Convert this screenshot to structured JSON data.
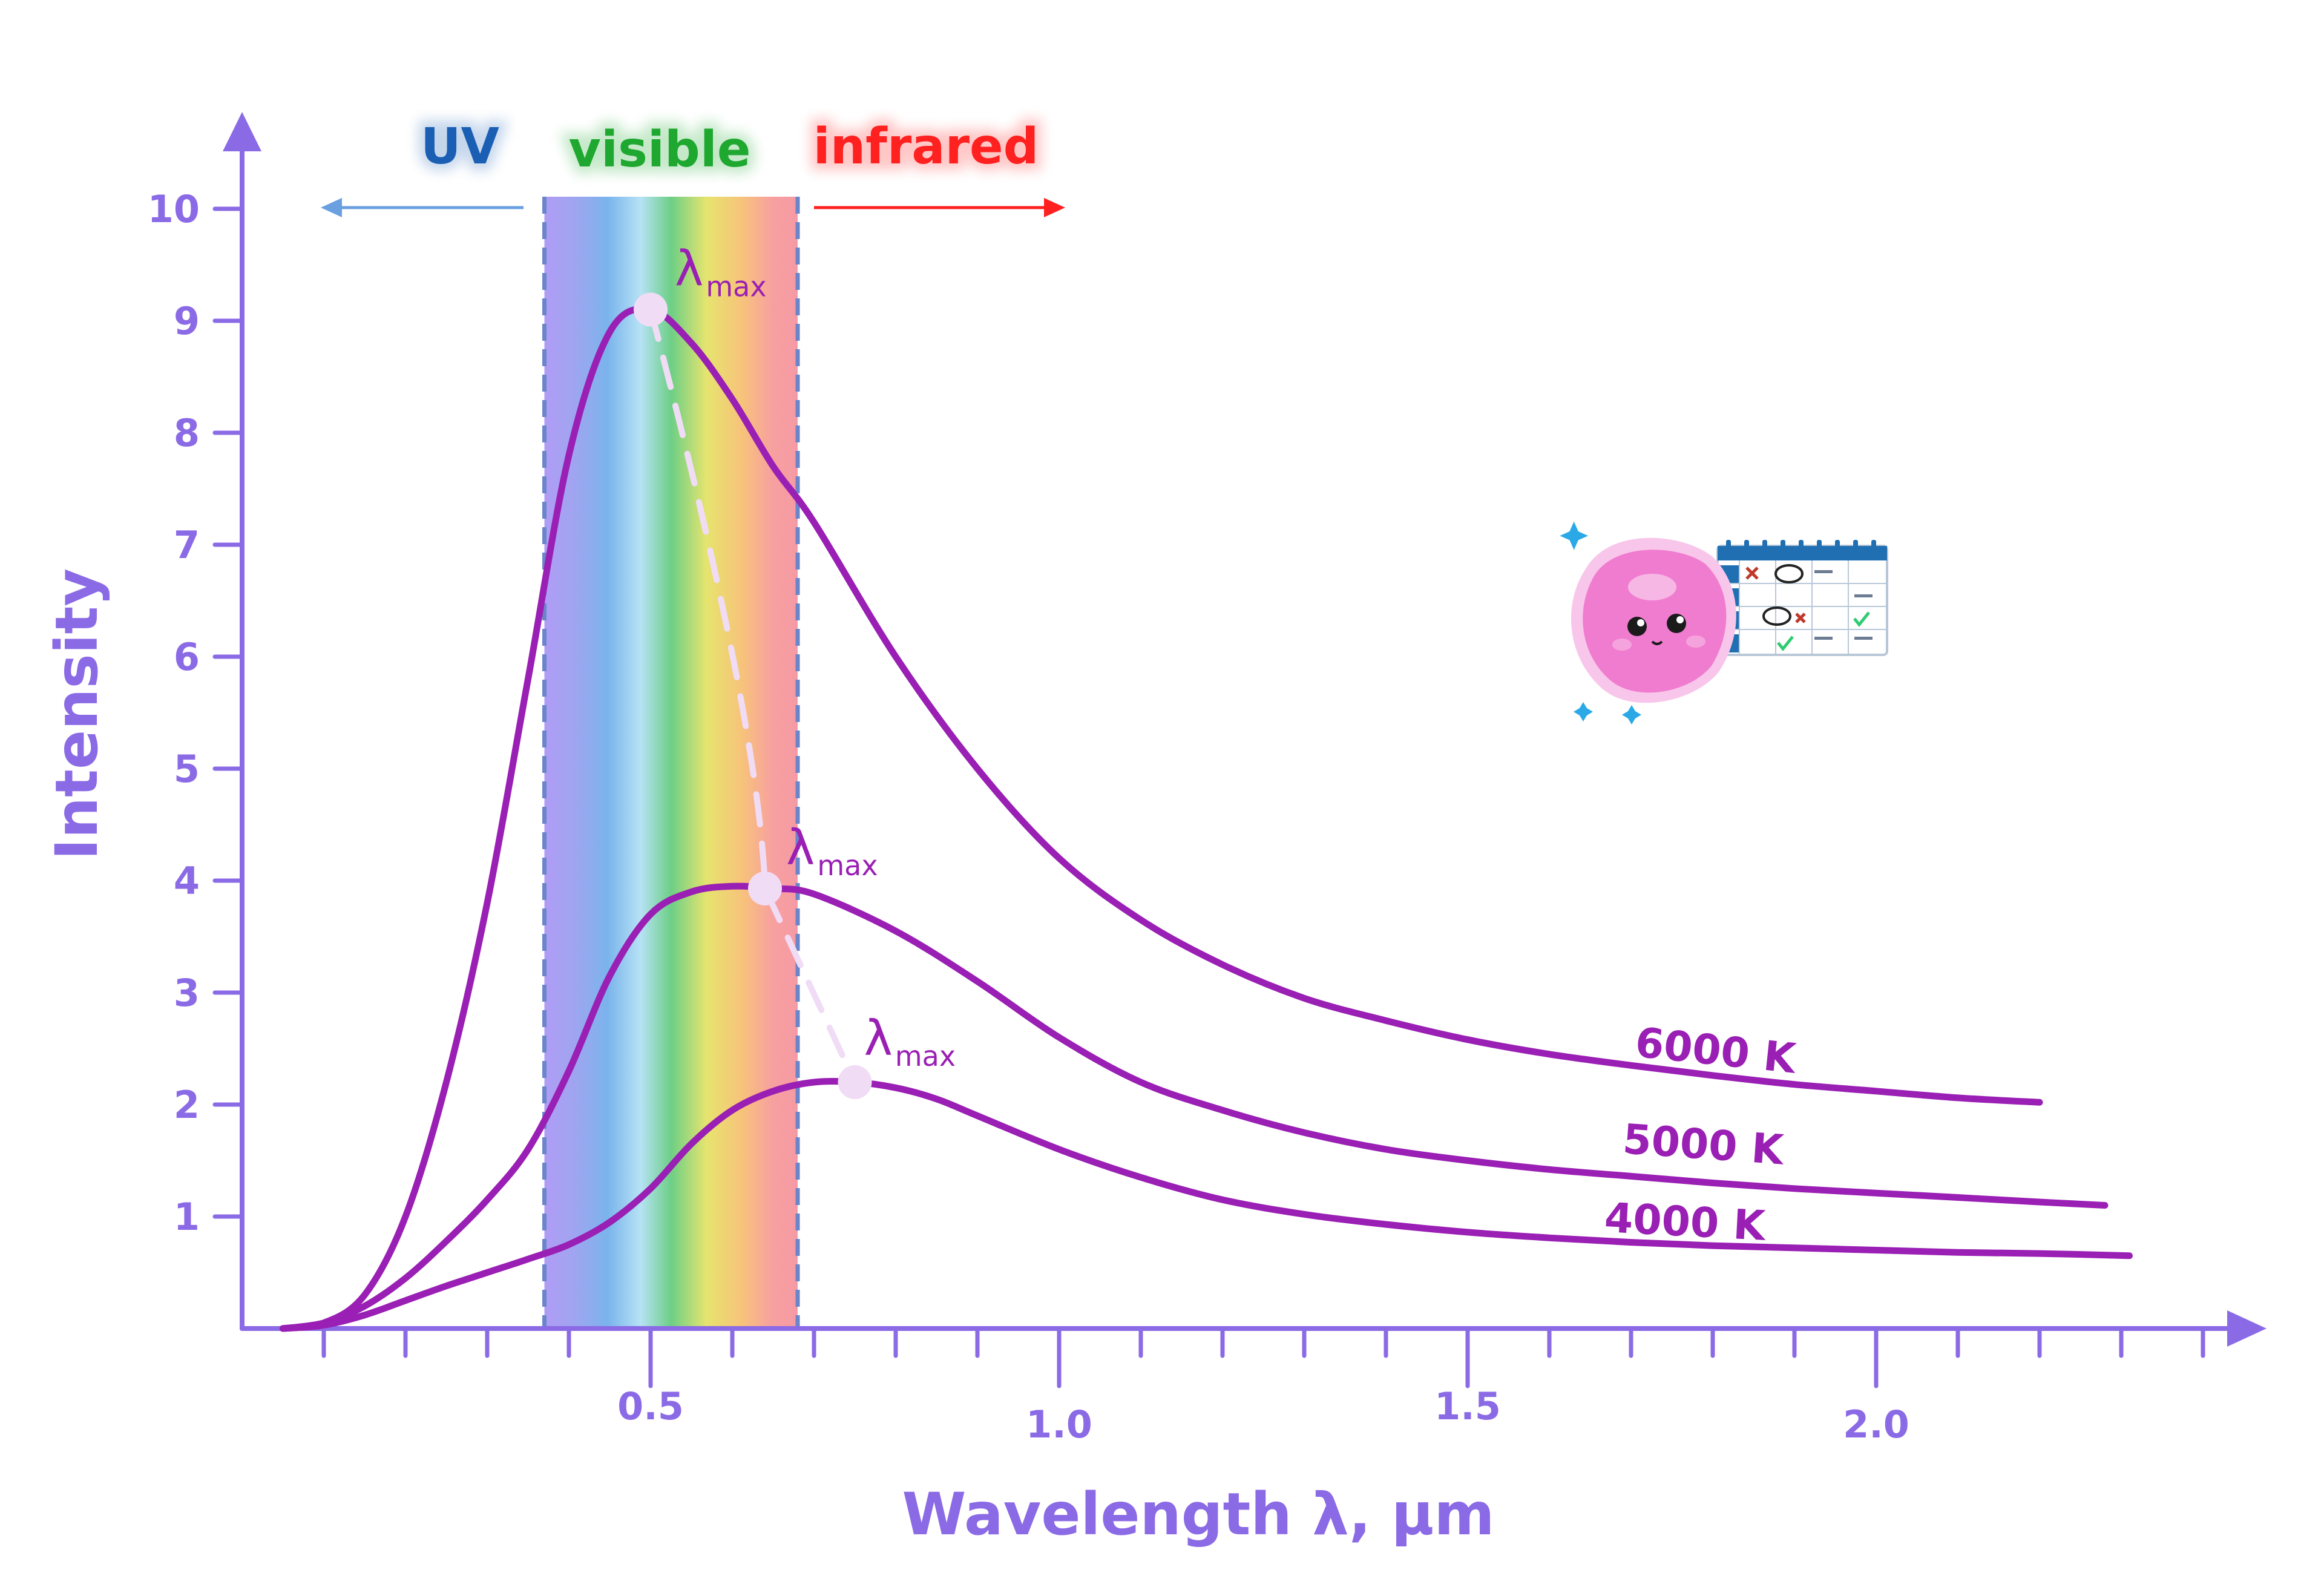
{
  "chart_data": {
    "type": "line",
    "xlabel": "Wavelength λ, µm",
    "ylabel": "Intensity",
    "xlim": [
      0.0,
      2.45
    ],
    "ylim": [
      0.0,
      10.5
    ],
    "x_ticks": [
      {
        "value": 0.5,
        "label": "0.5"
      },
      {
        "value": 1.0,
        "label": "1.0"
      },
      {
        "value": 1.5,
        "label": "1.5"
      },
      {
        "value": 2.0,
        "label": "2.0"
      }
    ],
    "y_ticks": [
      {
        "value": 1,
        "label": "1"
      },
      {
        "value": 2,
        "label": "2"
      },
      {
        "value": 3,
        "label": "3"
      },
      {
        "value": 4,
        "label": "4"
      },
      {
        "value": 5,
        "label": "5"
      },
      {
        "value": 6,
        "label": "6"
      },
      {
        "value": 7,
        "label": "7"
      },
      {
        "value": 8,
        "label": "8"
      },
      {
        "value": 9,
        "label": "9"
      },
      {
        "value": 10,
        "label": "10"
      }
    ],
    "regions": [
      {
        "label": "UV",
        "color": "#1a5fb4"
      },
      {
        "label": "visible",
        "color": "#1fa82f",
        "x_range": [
          0.37,
          0.68
        ]
      },
      {
        "label": "infrared",
        "color": "#ff2020"
      }
    ],
    "series": [
      {
        "name": "6000 K",
        "color": "#9a1fb4",
        "x": [
          0.05,
          0.1,
          0.15,
          0.2,
          0.25,
          0.3,
          0.35,
          0.4,
          0.45,
          0.5,
          0.55,
          0.6,
          0.65,
          0.7,
          0.8,
          0.9,
          1.0,
          1.1,
          1.2,
          1.3,
          1.4,
          1.5,
          1.6,
          1.7,
          1.8,
          1.9,
          2.0,
          2.1,
          2.2
        ],
        "y": [
          0.0,
          0.05,
          0.3,
          1.0,
          2.2,
          3.8,
          5.8,
          7.8,
          8.9,
          9.1,
          8.8,
          8.3,
          7.7,
          7.2,
          6.0,
          5.0,
          4.2,
          3.65,
          3.25,
          2.95,
          2.75,
          2.58,
          2.45,
          2.35,
          2.26,
          2.18,
          2.12,
          2.06,
          2.02
        ]
      },
      {
        "name": "5000 K",
        "color": "#9a1fb4",
        "x": [
          0.05,
          0.1,
          0.15,
          0.2,
          0.25,
          0.3,
          0.35,
          0.4,
          0.45,
          0.5,
          0.55,
          0.6,
          0.65,
          0.7,
          0.8,
          0.9,
          1.0,
          1.1,
          1.2,
          1.3,
          1.4,
          1.5,
          1.6,
          1.7,
          1.8,
          1.9,
          2.0,
          2.1,
          2.2,
          2.28
        ],
        "y": [
          0.0,
          0.05,
          0.2,
          0.45,
          0.78,
          1.15,
          1.6,
          2.3,
          3.15,
          3.7,
          3.9,
          3.95,
          3.93,
          3.88,
          3.55,
          3.1,
          2.6,
          2.2,
          1.95,
          1.75,
          1.6,
          1.5,
          1.42,
          1.36,
          1.3,
          1.25,
          1.21,
          1.17,
          1.13,
          1.1
        ]
      },
      {
        "name": "4000 K",
        "color": "#9a1fb4",
        "x": [
          0.05,
          0.1,
          0.15,
          0.2,
          0.25,
          0.3,
          0.35,
          0.4,
          0.45,
          0.5,
          0.55,
          0.6,
          0.65,
          0.7,
          0.75,
          0.8,
          0.85,
          0.9,
          1.0,
          1.1,
          1.2,
          1.3,
          1.4,
          1.5,
          1.6,
          1.7,
          1.8,
          1.9,
          2.0,
          2.1,
          2.2,
          2.31
        ],
        "y": [
          0.0,
          0.03,
          0.12,
          0.25,
          0.38,
          0.5,
          0.62,
          0.75,
          0.95,
          1.25,
          1.65,
          1.95,
          2.12,
          2.2,
          2.2,
          2.15,
          2.05,
          1.9,
          1.6,
          1.35,
          1.15,
          1.02,
          0.93,
          0.86,
          0.81,
          0.77,
          0.74,
          0.72,
          0.7,
          0.68,
          0.67,
          0.65
        ]
      }
    ],
    "peaks": [
      {
        "series": "6000 K",
        "x": 0.5,
        "y": 9.1,
        "label": "λ",
        "sub": "max"
      },
      {
        "series": "5000 K",
        "x": 0.64,
        "y": 3.93,
        "label": "λ",
        "sub": "max"
      },
      {
        "series": "4000 K",
        "x": 0.75,
        "y": 2.2,
        "label": "λ",
        "sub": "max"
      }
    ],
    "grid": false,
    "legend": "none (series labelled at right end of each curve)"
  },
  "colors": {
    "axis": "#8b6ae6",
    "curve": "#9a1fb4",
    "wien_line": "#f1dcf6",
    "uv_arrow": "#6a9fe0",
    "ir_arrow": "#ff2020"
  },
  "decoration": {
    "icon": "pink-blob-mascot-with-calendar-icon"
  }
}
